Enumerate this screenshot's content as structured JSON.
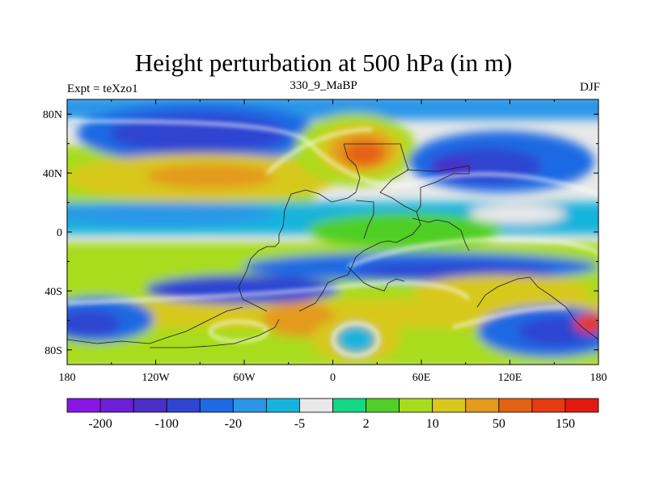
{
  "title": "Height perturbation at 500 hPa (in m)",
  "subtitle": {
    "left": "Expt = teXzo1",
    "center": "330_9_MaBP",
    "right": "DJF"
  },
  "map": {
    "lon_range": [
      -180,
      180
    ],
    "lat_range": [
      -90,
      90
    ],
    "lat_ticks": [
      "80N",
      "40N",
      "0",
      "40S",
      "80S"
    ],
    "lon_ticks": [
      "180",
      "120W",
      "60W",
      "0",
      "60E",
      "120E",
      "180"
    ],
    "missing_color": "#e8e8e8"
  },
  "colorbar": {
    "colors": [
      "#8a16e6",
      "#6d1fd8",
      "#4b2ec7",
      "#2f45d2",
      "#1f6ae3",
      "#2b96e8",
      "#16b4dc",
      "#e8e8e8",
      "#14d884",
      "#4fcf28",
      "#a8dc1e",
      "#d8c81c",
      "#e49a1a",
      "#e56212",
      "#e63a10",
      "#e41a10"
    ],
    "labels": [
      "-200",
      "-100",
      "-20",
      "-5",
      "2",
      "10",
      "50",
      "150"
    ]
  }
}
